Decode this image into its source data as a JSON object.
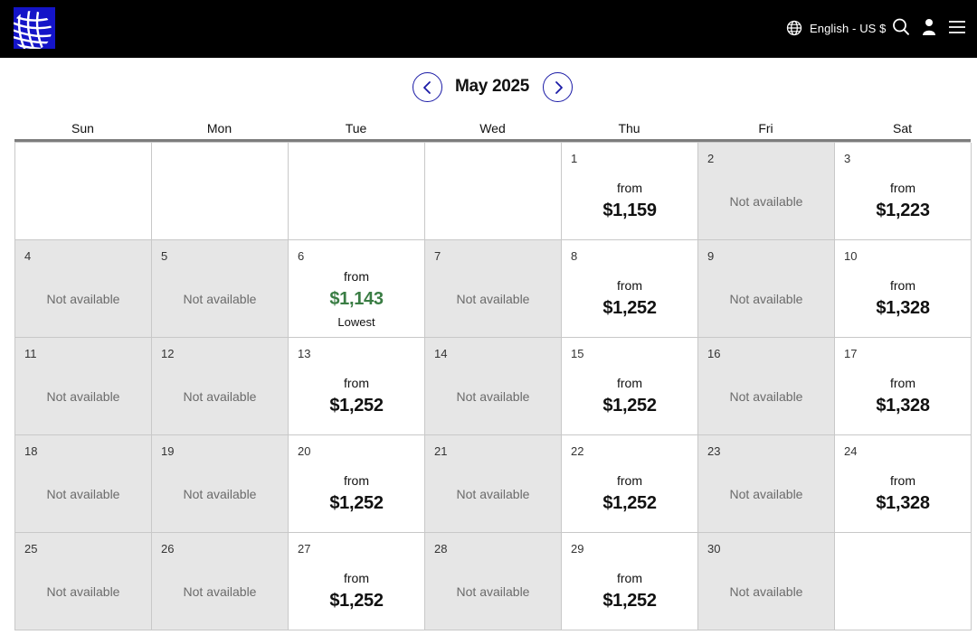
{
  "header": {
    "brand_colors": {
      "bar": "#000000",
      "logo_bg": "#1414c8"
    },
    "language_label": "English - US $",
    "icons": [
      "globe-icon",
      "search-icon",
      "user-icon",
      "hamburger-menu-icon"
    ]
  },
  "calendar": {
    "month_label": "May 2025",
    "weekdays": [
      "Sun",
      "Mon",
      "Tue",
      "Wed",
      "Thu",
      "Fri",
      "Sat"
    ],
    "from_label": "from",
    "not_available_label": "Not available",
    "lowest_label": "Lowest",
    "colors": {
      "unavailable_bg": "#e6e6e6",
      "lowest_price": "#3a7d44",
      "nav_accent": "#1a1aa6"
    },
    "cells": [
      {
        "day": "",
        "status": "empty"
      },
      {
        "day": "",
        "status": "empty"
      },
      {
        "day": "",
        "status": "empty"
      },
      {
        "day": "",
        "status": "empty"
      },
      {
        "day": "1",
        "status": "price",
        "price": "$1,159"
      },
      {
        "day": "2",
        "status": "na"
      },
      {
        "day": "3",
        "status": "price",
        "price": "$1,223"
      },
      {
        "day": "4",
        "status": "na"
      },
      {
        "day": "5",
        "status": "na"
      },
      {
        "day": "6",
        "status": "price",
        "price": "$1,143",
        "lowest": true
      },
      {
        "day": "7",
        "status": "na"
      },
      {
        "day": "8",
        "status": "price",
        "price": "$1,252"
      },
      {
        "day": "9",
        "status": "na"
      },
      {
        "day": "10",
        "status": "price",
        "price": "$1,328"
      },
      {
        "day": "11",
        "status": "na"
      },
      {
        "day": "12",
        "status": "na"
      },
      {
        "day": "13",
        "status": "price",
        "price": "$1,252"
      },
      {
        "day": "14",
        "status": "na"
      },
      {
        "day": "15",
        "status": "price",
        "price": "$1,252"
      },
      {
        "day": "16",
        "status": "na"
      },
      {
        "day": "17",
        "status": "price",
        "price": "$1,328"
      },
      {
        "day": "18",
        "status": "na"
      },
      {
        "day": "19",
        "status": "na"
      },
      {
        "day": "20",
        "status": "price",
        "price": "$1,252"
      },
      {
        "day": "21",
        "status": "na"
      },
      {
        "day": "22",
        "status": "price",
        "price": "$1,252"
      },
      {
        "day": "23",
        "status": "na"
      },
      {
        "day": "24",
        "status": "price",
        "price": "$1,328"
      },
      {
        "day": "25",
        "status": "na"
      },
      {
        "day": "26",
        "status": "na"
      },
      {
        "day": "27",
        "status": "price",
        "price": "$1,252"
      },
      {
        "day": "28",
        "status": "na"
      },
      {
        "day": "29",
        "status": "price",
        "price": "$1,252"
      },
      {
        "day": "30",
        "status": "na"
      },
      {
        "day": "",
        "status": "empty"
      }
    ]
  }
}
